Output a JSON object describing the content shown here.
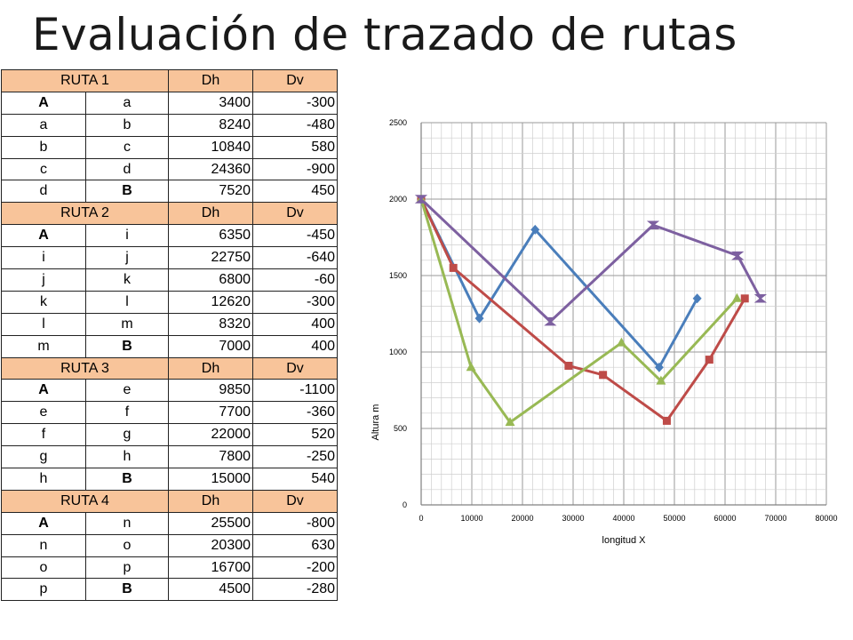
{
  "title": "Evaluación de trazado de rutas",
  "routes": [
    {
      "header": [
        "RUTA 1",
        "Dh",
        "Dv"
      ],
      "rows": [
        [
          "A",
          "a",
          "3400",
          "-300"
        ],
        [
          "a",
          "b",
          "8240",
          "-480"
        ],
        [
          "b",
          "c",
          "10840",
          "580"
        ],
        [
          "c",
          "d",
          "24360",
          "-900"
        ],
        [
          "d",
          "B",
          "7520",
          "450"
        ]
      ]
    },
    {
      "header": [
        "RUTA 2",
        "Dh",
        "Dv"
      ],
      "rows": [
        [
          "A",
          "i",
          "6350",
          "-450"
        ],
        [
          "i",
          "j",
          "22750",
          "-640"
        ],
        [
          "j",
          "k",
          "6800",
          "-60"
        ],
        [
          "k",
          "l",
          "12620",
          "-300"
        ],
        [
          "l",
          "m",
          "8320",
          "400"
        ],
        [
          "m",
          "B",
          "7000",
          "400"
        ]
      ]
    },
    {
      "header": [
        "RUTA 3",
        "Dh",
        "Dv"
      ],
      "rows": [
        [
          "A",
          "e",
          "9850",
          "-1100"
        ],
        [
          "e",
          "f",
          "7700",
          "-360"
        ],
        [
          "f",
          "g",
          "22000",
          "520"
        ],
        [
          "g",
          "h",
          "7800",
          "-250"
        ],
        [
          "h",
          "B",
          "15000",
          "540"
        ]
      ]
    },
    {
      "header": [
        "RUTA 4",
        "Dh",
        "Dv"
      ],
      "rows": [
        [
          "A",
          "n",
          "25500",
          "-800"
        ],
        [
          "n",
          "o",
          "20300",
          "630"
        ],
        [
          "o",
          "p",
          "16700",
          "-200"
        ],
        [
          "p",
          "B",
          "4500",
          "-280"
        ]
      ]
    }
  ],
  "chart_data": {
    "type": "line",
    "xlabel": "longitud X",
    "ylabel": "Altura m",
    "xlim": [
      0,
      80000
    ],
    "ylim": [
      0,
      2500
    ],
    "xticks": [
      "0",
      "10000",
      "20000",
      "30000",
      "40000",
      "50000",
      "60000",
      "70000",
      "80000"
    ],
    "yticks": [
      "0",
      "500",
      "1000",
      "1500",
      "2000",
      "2500"
    ],
    "grid": true,
    "series": [
      {
        "color": "#4a7ebb",
        "marker": "diamond",
        "x": [
          0,
          11500,
          22500,
          47000,
          54500
        ],
        "y": [
          2000,
          1220,
          1800,
          900,
          1350
        ]
      },
      {
        "color": "#be4b48",
        "marker": "square",
        "x": [
          0,
          6350,
          29100,
          35900,
          48500,
          56900,
          63900
        ],
        "y": [
          2000,
          1550,
          910,
          850,
          550,
          950,
          1350
        ]
      },
      {
        "color": "#98b954",
        "marker": "triangle",
        "x": [
          0,
          9850,
          17550,
          39550,
          47350,
          62350
        ],
        "y": [
          2000,
          900,
          540,
          1060,
          810,
          1350
        ]
      },
      {
        "color": "#7d60a0",
        "marker": "x",
        "x": [
          0,
          25500,
          45800,
          62500,
          67000
        ],
        "y": [
          2000,
          1200,
          1830,
          1630,
          1350
        ]
      }
    ]
  }
}
